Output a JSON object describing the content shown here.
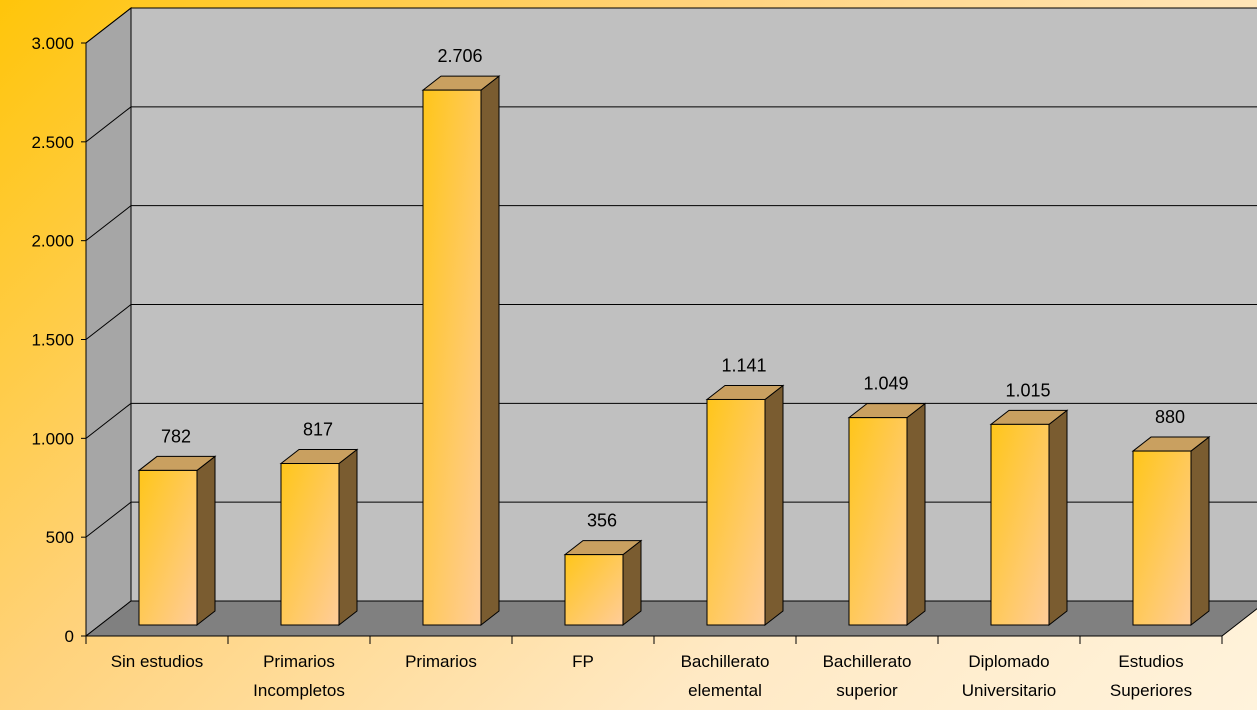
{
  "chart_data": {
    "type": "bar",
    "title": "",
    "xlabel": "",
    "ylabel": "",
    "categories": [
      [
        "Sin estudios"
      ],
      [
        "Primarios",
        "Incompletos"
      ],
      [
        "Primarios"
      ],
      [
        "FP"
      ],
      [
        "Bachillerato",
        "elemental"
      ],
      [
        "Bachillerato",
        "superior"
      ],
      [
        "Diplomado",
        "Universitario"
      ],
      [
        "Estudios",
        "Superiores"
      ]
    ],
    "values": [
      782,
      817,
      2706,
      356,
      1141,
      1049,
      1015,
      880
    ],
    "value_labels": [
      "782",
      "817",
      "2.706",
      "356",
      "1.141",
      "1.049",
      "1.015",
      "880"
    ],
    "yticks": [
      0,
      500,
      1000,
      1500,
      2000,
      2500,
      3000
    ],
    "ytick_labels": [
      "0",
      "500",
      "1.000",
      "1.500",
      "2.000",
      "2.500",
      "3.000"
    ],
    "ylim": [
      0,
      3000
    ],
    "grid": true,
    "legend": "none",
    "style": "3d-bar",
    "colors": {
      "bar_front_top": "#ffc61a",
      "bar_front_bottom": "#ffcc99",
      "bar_side": "#7a5c30",
      "bar_top": "#c9a060",
      "back_wall": "#c0c0c0",
      "side_wall": "#a6a6a6",
      "floor": "#808080",
      "gridline": "#000000"
    }
  }
}
